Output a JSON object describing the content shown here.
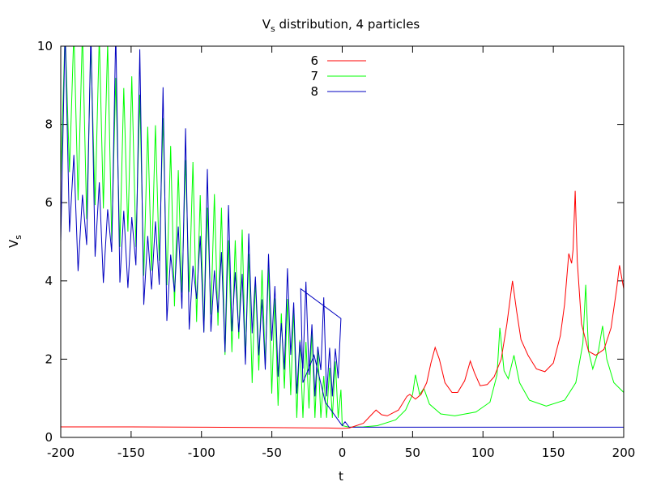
{
  "chart_data": {
    "type": "line",
    "title": "V",
    "title_subscript": "s",
    "title_suffix": " distribution, 4 particles",
    "xlabel": "t",
    "ylabel": "V",
    "ylabel_subscript": "s",
    "xlim": [
      -200,
      200
    ],
    "ylim": [
      0,
      10
    ],
    "x_ticks": [
      -200,
      -150,
      -100,
      -50,
      0,
      50,
      100,
      150,
      200
    ],
    "y_ticks": [
      0,
      2,
      4,
      6,
      8,
      10
    ],
    "grid": false,
    "legend_position": "top-center",
    "series": [
      {
        "name": "6",
        "color": "#ff0000",
        "points": [
          [
            -200,
            0.27
          ],
          [
            -150,
            0.27
          ],
          [
            -100,
            0.26
          ],
          [
            -50,
            0.25
          ],
          [
            -10,
            0.24
          ],
          [
            0,
            0.23
          ],
          [
            5,
            0.24
          ],
          [
            15,
            0.36
          ],
          [
            20,
            0.55
          ],
          [
            24,
            0.7
          ],
          [
            28,
            0.58
          ],
          [
            32,
            0.55
          ],
          [
            40,
            0.7
          ],
          [
            46,
            1.05
          ],
          [
            48,
            1.1
          ],
          [
            52,
            0.98
          ],
          [
            56,
            1.1
          ],
          [
            60,
            1.4
          ],
          [
            63,
            1.9
          ],
          [
            66,
            2.3
          ],
          [
            69,
            2.0
          ],
          [
            73,
            1.4
          ],
          [
            78,
            1.15
          ],
          [
            82,
            1.15
          ],
          [
            87,
            1.45
          ],
          [
            91,
            1.95
          ],
          [
            94,
            1.65
          ],
          [
            98,
            1.32
          ],
          [
            103,
            1.35
          ],
          [
            108,
            1.55
          ],
          [
            113,
            2.0
          ],
          [
            117,
            2.9
          ],
          [
            121,
            4.0
          ],
          [
            124,
            3.2
          ],
          [
            127,
            2.5
          ],
          [
            132,
            2.1
          ],
          [
            138,
            1.75
          ],
          [
            144,
            1.68
          ],
          [
            150,
            1.9
          ],
          [
            155,
            2.6
          ],
          [
            158,
            3.4
          ],
          [
            161,
            4.7
          ],
          [
            163,
            4.45
          ],
          [
            164,
            4.8
          ],
          [
            165.5,
            6.3
          ],
          [
            167,
            4.5
          ],
          [
            170,
            2.9
          ],
          [
            175,
            2.2
          ],
          [
            180,
            2.1
          ],
          [
            186,
            2.25
          ],
          [
            191,
            2.8
          ],
          [
            195,
            3.8
          ],
          [
            197,
            4.4
          ],
          [
            200,
            3.8
          ]
        ]
      },
      {
        "name": "7",
        "color": "#00ff00",
        "points": []
      },
      {
        "name": "8",
        "color": "#0000c0",
        "points": []
      }
    ]
  }
}
